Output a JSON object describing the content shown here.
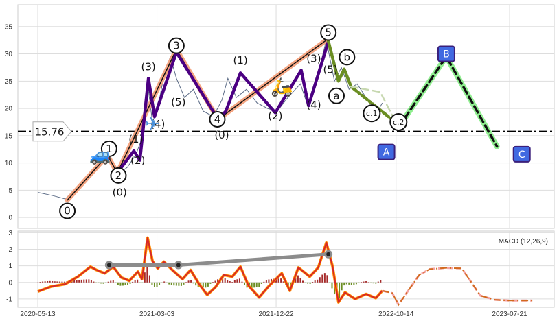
{
  "chart_data": [
    {
      "type": "line",
      "panel": "price",
      "ylim": [
        -2,
        39
      ],
      "yticks": [
        0,
        5,
        10,
        15,
        20,
        25,
        30,
        35
      ],
      "grid": true,
      "horizontal_level": {
        "value": 15.76,
        "label": "15.76"
      },
      "price_series": [
        {
          "x": "2020-05-13",
          "y": 4.6
        },
        {
          "x": "2020-06-20",
          "y": 4.0
        },
        {
          "x": "2020-07-20",
          "y": 3.4
        },
        {
          "x": "2020-08-20",
          "y": 5.8
        },
        {
          "x": "2020-09-25",
          "y": 8.4
        },
        {
          "x": "2020-10-25",
          "y": 11.0
        },
        {
          "x": "2020-11-15",
          "y": 10.2
        },
        {
          "x": "2020-11-28",
          "y": 8.0
        },
        {
          "x": "2020-12-20",
          "y": 9.2
        },
        {
          "x": "2021-01-10",
          "y": 11.5
        },
        {
          "x": "2021-01-25",
          "y": 14.5
        },
        {
          "x": "2021-02-08",
          "y": 24.5
        },
        {
          "x": "2021-02-20",
          "y": 17.5
        },
        {
          "x": "2021-03-05",
          "y": 20.0
        },
        {
          "x": "2021-03-20",
          "y": 26.0
        },
        {
          "x": "2021-04-05",
          "y": 29.5
        },
        {
          "x": "2021-04-20",
          "y": 25.5
        },
        {
          "x": "2021-05-10",
          "y": 22.0
        },
        {
          "x": "2021-06-01",
          "y": 23.5
        },
        {
          "x": "2021-06-25",
          "y": 19.5
        },
        {
          "x": "2021-07-20",
          "y": 18.5
        },
        {
          "x": "2021-08-10",
          "y": 21.5
        },
        {
          "x": "2021-08-25",
          "y": 25.5
        },
        {
          "x": "2021-09-15",
          "y": 22.0
        },
        {
          "x": "2021-10-10",
          "y": 23.5
        },
        {
          "x": "2021-11-05",
          "y": 21.0
        },
        {
          "x": "2021-12-01",
          "y": 20.0
        },
        {
          "x": "2021-12-25",
          "y": 19.5
        },
        {
          "x": "2022-01-20",
          "y": 22.0
        },
        {
          "x": "2022-02-20",
          "y": 24.5
        },
        {
          "x": "2022-03-10",
          "y": 20.5
        },
        {
          "x": "2022-04-05",
          "y": 26.5
        },
        {
          "x": "2022-04-25",
          "y": 32.5
        },
        {
          "x": "2022-05-15",
          "y": 25.0
        },
        {
          "x": "2022-06-01",
          "y": 27.5
        },
        {
          "x": "2022-06-20",
          "y": 23.5
        },
        {
          "x": "2022-07-10",
          "y": 24.5
        },
        {
          "x": "2022-08-05",
          "y": 21.5
        },
        {
          "x": "2022-08-30",
          "y": 19.5
        },
        {
          "x": "2022-09-10",
          "y": 21.0
        }
      ],
      "wave_paths": [
        {
          "name": "",
          "color": "#F4A582",
          "width": 7,
          "dash": "none",
          "points": [
            {
              "x": "2020-07-25",
              "y": 3.2
            },
            {
              "x": "2020-11-01",
              "y": 11.4
            },
            {
              "x": "2020-11-25",
              "y": 8.2
            },
            {
              "x": "2021-04-20",
              "y": 30.8
            },
            {
              "x": "2021-08-01",
              "y": 18.0
            },
            {
              "x": "2022-04-30",
              "y": 32.8
            }
          ]
        },
        {
          "name": "",
          "color": "#111111",
          "width": 1.5,
          "dash": "none",
          "points": [
            {
              "x": "2020-07-25",
              "y": 3.2
            },
            {
              "x": "2020-11-01",
              "y": 11.4
            },
            {
              "x": "2020-11-25",
              "y": 8.2
            },
            {
              "x": "2021-04-20",
              "y": 30.8
            },
            {
              "x": "2021-08-01",
              "y": 18.0
            },
            {
              "x": "2022-04-30",
              "y": 32.8
            }
          ]
        },
        {
          "name": "",
          "color": "#4B0082",
          "width": 4.5,
          "dash": "none",
          "points": [
            {
              "x": "2020-11-25",
              "y": 8.2
            },
            {
              "x": "2021-01-05",
              "y": 12.2
            },
            {
              "x": "2021-01-20",
              "y": 10.5
            },
            {
              "x": "2021-02-10",
              "y": 25.5
            },
            {
              "x": "2021-02-25",
              "y": 18.5
            },
            {
              "x": "2021-04-20",
              "y": 30.3
            },
            {
              "x": "2021-08-01",
              "y": 18.0
            },
            {
              "x": "2021-08-20",
              "y": 19.5
            },
            {
              "x": "2021-09-25",
              "y": 26.5
            },
            {
              "x": "2021-12-20",
              "y": 19.2
            },
            {
              "x": "2022-02-22",
              "y": 27.0
            },
            {
              "x": "2022-03-12",
              "y": 20.5
            },
            {
              "x": "2022-04-30",
              "y": 32.3
            }
          ]
        },
        {
          "name": "",
          "color": "#6B8E23",
          "width": 4.5,
          "dash": "none",
          "points": [
            {
              "x": "2022-04-30",
              "y": 32.3
            },
            {
              "x": "2022-05-25",
              "y": 25.0
            },
            {
              "x": "2022-06-08",
              "y": 27.2
            },
            {
              "x": "2022-06-25",
              "y": 24.0
            }
          ]
        },
        {
          "name": "",
          "color": "#6B8E23",
          "width": 4.5,
          "dash": "dashdot",
          "points": [
            {
              "x": "2022-06-25",
              "y": 24.0
            },
            {
              "x": "2022-10-20",
              "y": 17.0
            }
          ]
        },
        {
          "name": "",
          "color": "#C7D8B0",
          "width": 2.5,
          "dash": "dash",
          "points": [
            {
              "x": "2022-06-25",
              "y": 24.0
            },
            {
              "x": "2022-09-05",
              "y": 23.0
            },
            {
              "x": "2022-10-20",
              "y": 16.5
            }
          ]
        },
        {
          "name": "",
          "color": "#90EE90",
          "width": 8,
          "dash": "none",
          "points": [
            {
              "x": "2022-10-20",
              "y": 16.5
            },
            {
              "x": "2023-02-15",
              "y": 29.5
            },
            {
              "x": "2023-06-20",
              "y": 13.0
            }
          ]
        },
        {
          "name": "",
          "color": "#111111",
          "width": 3.5,
          "dash": "dash",
          "points": [
            {
              "x": "2022-10-20",
              "y": 16.5
            },
            {
              "x": "2023-02-15",
              "y": 29.5
            },
            {
              "x": "2023-06-20",
              "y": 13.0
            }
          ]
        }
      ],
      "circle_labels": [
        {
          "text": "0",
          "x": "2020-07-25",
          "y": 1.2
        },
        {
          "text": "1",
          "x": "2020-11-05",
          "y": 12.6
        },
        {
          "text": "2",
          "x": "2020-11-28",
          "y": 7.7
        },
        {
          "text": "3",
          "x": "2021-04-20",
          "y": 31.5
        },
        {
          "text": "4",
          "x": "2021-07-30",
          "y": 18.0
        },
        {
          "text": "5",
          "x": "2022-04-30",
          "y": 33.9
        },
        {
          "text": "a",
          "x": "2022-05-20",
          "y": 22.3
        },
        {
          "text": "b",
          "x": "2022-06-15",
          "y": 29.4
        },
        {
          "text": "c.1",
          "x": "2022-08-15",
          "y": 19.1
        },
        {
          "text": "c.2",
          "x": "2022-10-20",
          "y": 17.5
        }
      ],
      "plain_labels": [
        {
          "text": "(0)",
          "x": "2020-12-01",
          "y": 4.0
        },
        {
          "text": "(1)",
          "x": "2021-01-10",
          "y": 13.7
        },
        {
          "text": "(2)",
          "x": "2021-01-15",
          "y": 9.8
        },
        {
          "text": "(3)",
          "x": "2021-02-10",
          "y": 27.0
        },
        {
          "text": "(4)",
          "x": "2021-03-05",
          "y": 16.5
        },
        {
          "text": "(5)",
          "x": "2021-04-25",
          "y": 20.5
        },
        {
          "text": "(0)",
          "x": "2021-08-10",
          "y": 14.5
        },
        {
          "text": "(1)",
          "x": "2021-09-25",
          "y": 28.2
        },
        {
          "text": "(2)",
          "x": "2021-12-20",
          "y": 18.0
        },
        {
          "text": "(3)",
          "x": "2022-03-25",
          "y": 28.5
        },
        {
          "text": "(4)",
          "x": "2022-03-25",
          "y": 20.0
        },
        {
          "text": "(5)",
          "x": "2022-05-05",
          "y": 26.5
        }
      ],
      "box_labels": [
        {
          "text": "A",
          "x": "2022-09-20",
          "y": 12.0
        },
        {
          "text": "B",
          "x": "2023-02-15",
          "y": 30.0
        },
        {
          "text": "C",
          "x": "2023-08-20",
          "y": 11.6
        }
      ],
      "icons": [
        {
          "name": "car-icon",
          "glyph": "🚙",
          "x": "2020-10-15",
          "y": 11.5
        },
        {
          "name": "airplane-icon",
          "glyph": "✈",
          "x": "2021-02-20",
          "y": 17.2
        },
        {
          "name": "scooter-icon",
          "glyph": "🛵",
          "x": "2022-01-05",
          "y": 24.0
        }
      ]
    },
    {
      "type": "line",
      "panel": "macd",
      "legend": "MACD (12,26,9)",
      "ylim": [
        -1.5,
        3.1
      ],
      "yticks": [
        -1,
        0,
        1,
        2,
        3
      ],
      "x_tick_labels": [
        "2020-05-13",
        "2021-03-03",
        "2021-12-22",
        "2022-10-14",
        "2023-07-21"
      ],
      "macd_series": [
        {
          "x": "2020-05-13",
          "y": -0.55
        },
        {
          "x": "2020-06-15",
          "y": -0.25
        },
        {
          "x": "2020-07-20",
          "y": -0.1
        },
        {
          "x": "2020-08-20",
          "y": 0.35
        },
        {
          "x": "2020-09-20",
          "y": 0.95
        },
        {
          "x": "2020-10-05",
          "y": 0.75
        },
        {
          "x": "2020-10-25",
          "y": 0.55
        },
        {
          "x": "2020-11-15",
          "y": 0.95
        },
        {
          "x": "2020-12-05",
          "y": 0.3
        },
        {
          "x": "2020-12-25",
          "y": 0.1
        },
        {
          "x": "2021-01-15",
          "y": 0.65
        },
        {
          "x": "2021-01-25",
          "y": 0.2
        },
        {
          "x": "2021-02-08",
          "y": 2.7
        },
        {
          "x": "2021-02-20",
          "y": 1.3
        },
        {
          "x": "2021-03-05",
          "y": 0.85
        },
        {
          "x": "2021-03-20",
          "y": 1.25
        },
        {
          "x": "2021-04-10",
          "y": 0.75
        },
        {
          "x": "2021-05-05",
          "y": 0.2
        },
        {
          "x": "2021-05-25",
          "y": 0.75
        },
        {
          "x": "2021-06-15",
          "y": -0.1
        },
        {
          "x": "2021-07-05",
          "y": -0.75
        },
        {
          "x": "2021-07-25",
          "y": -0.3
        },
        {
          "x": "2021-08-15",
          "y": 0.45
        },
        {
          "x": "2021-09-05",
          "y": 0.35
        },
        {
          "x": "2021-09-25",
          "y": 0.95
        },
        {
          "x": "2021-10-15",
          "y": -0.2
        },
        {
          "x": "2021-11-10",
          "y": -0.9
        },
        {
          "x": "2021-12-05",
          "y": -0.2
        },
        {
          "x": "2022-01-05",
          "y": 0.55
        },
        {
          "x": "2022-01-25",
          "y": -0.5
        },
        {
          "x": "2022-02-15",
          "y": 0.9
        },
        {
          "x": "2022-03-15",
          "y": 0.35
        },
        {
          "x": "2022-04-05",
          "y": 0.9
        },
        {
          "x": "2022-04-25",
          "y": 2.4
        },
        {
          "x": "2022-05-10",
          "y": 1.0
        },
        {
          "x": "2022-05-25",
          "y": -1.2
        },
        {
          "x": "2022-06-10",
          "y": -0.6
        },
        {
          "x": "2022-07-05",
          "y": -1.0
        },
        {
          "x": "2022-08-01",
          "y": -0.7
        },
        {
          "x": "2022-08-25",
          "y": -0.95
        },
        {
          "x": "2022-09-10",
          "y": -0.5
        }
      ],
      "macd_forecast": [
        {
          "x": "2022-09-10",
          "y": -0.5
        },
        {
          "x": "2022-10-05",
          "y": -0.65
        },
        {
          "x": "2022-10-20",
          "y": -1.35
        },
        {
          "x": "2022-11-10",
          "y": -0.6
        },
        {
          "x": "2022-12-10",
          "y": 0.45
        },
        {
          "x": "2023-01-05",
          "y": 0.8
        },
        {
          "x": "2023-02-15",
          "y": 0.88
        },
        {
          "x": "2023-03-25",
          "y": 0.85
        },
        {
          "x": "2023-04-15",
          "y": 0.1
        },
        {
          "x": "2023-05-10",
          "y": -0.8
        },
        {
          "x": "2023-06-15",
          "y": -1.05
        },
        {
          "x": "2023-07-21",
          "y": -1.1
        },
        {
          "x": "2023-09-15",
          "y": -1.1
        }
      ],
      "divergence_line": [
        {
          "x": "2020-11-05",
          "y": 1.05
        },
        {
          "x": "2021-04-25",
          "y": 1.05
        },
        {
          "x": "2022-04-30",
          "y": 1.7
        }
      ]
    }
  ]
}
